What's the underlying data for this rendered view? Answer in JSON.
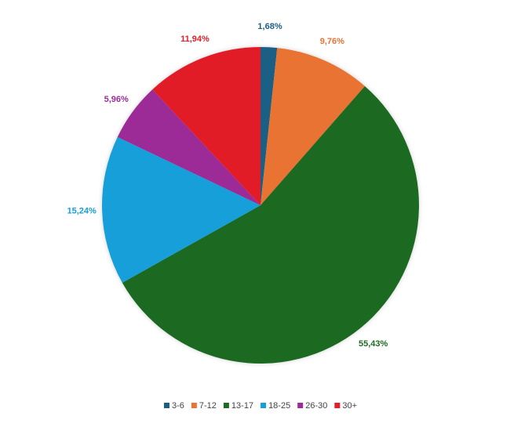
{
  "chart_data": {
    "type": "pie",
    "categories": [
      "3-6",
      "7-12",
      "13-17",
      "18-25",
      "26-30",
      "30+"
    ],
    "values": [
      1.68,
      9.76,
      55.43,
      15.24,
      5.96,
      11.94
    ],
    "value_labels": [
      "1,68%",
      "9,76%",
      "55,43%",
      "15,24%",
      "5,96%",
      "11,94%"
    ],
    "colors": [
      "#1b5e85",
      "#e97333",
      "#1f6b24",
      "#169fd9",
      "#9c2a97",
      "#e21f28"
    ],
    "legend": "bottom"
  }
}
